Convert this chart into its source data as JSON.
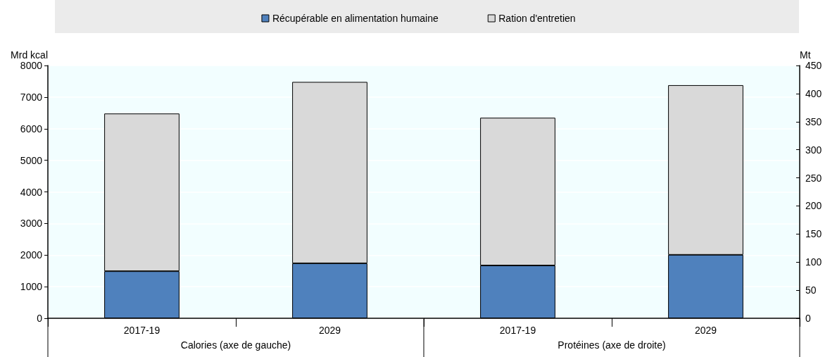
{
  "chart_data": {
    "type": "bar",
    "stacked": true,
    "categories": [
      "2017-19",
      "2029",
      "2017-19",
      "2029"
    ],
    "series": [
      {
        "name": "Récupérable en alimentation humaine",
        "color": "#4f81bd",
        "values": [
          1490,
          1740,
          null,
          null
        ]
      },
      {
        "name": "Ration d'entretien",
        "color": "#d9d9d9",
        "values": [
          4990,
          5740,
          null,
          null
        ]
      },
      {
        "color": "#4f81bd",
        "axis": "y2",
        "values": [
          null,
          null,
          94,
          113
        ]
      },
      {
        "color": "#d9d9d9",
        "axis": "y2",
        "values": [
          null,
          null,
          263,
          302
        ]
      }
    ],
    "ylabel": "Mrd kcal",
    "y2label": "Mt",
    "ylim": [
      0,
      8000
    ],
    "yticks": [
      0,
      1000,
      2000,
      3000,
      4000,
      5000,
      6000,
      7000,
      8000
    ],
    "y2lim": [
      0,
      450
    ],
    "y2ticks": [
      0,
      50,
      100,
      150,
      200,
      250,
      300,
      350,
      400,
      450
    ],
    "annotations": [
      "Calories (axe de gauche)",
      "Protéines (axe de droite)"
    ],
    "grid": "y",
    "legend": "top"
  }
}
